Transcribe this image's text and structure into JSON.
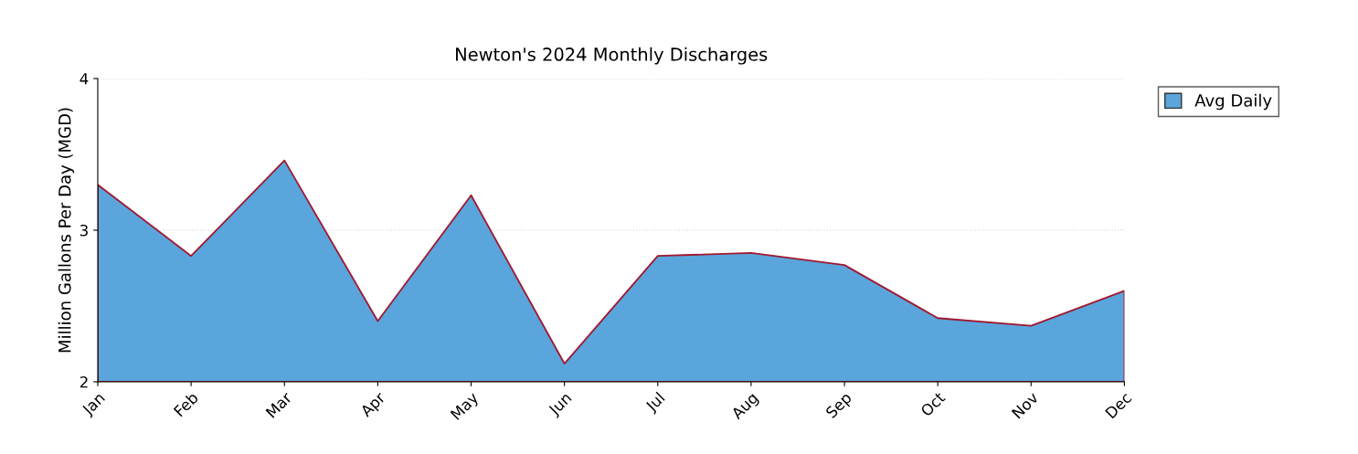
{
  "chart_data": {
    "type": "area",
    "title": "Newton's 2024 Monthly Discharges",
    "ylabel": "Million Gallons Per Day (MGD)",
    "categories": [
      "Jan",
      "Feb",
      "Mar",
      "Apr",
      "May",
      "Jun",
      "Jul",
      "Aug",
      "Sep",
      "Oct",
      "Nov",
      "Dec"
    ],
    "series": [
      {
        "name": "Avg Daily",
        "color": "#5aa5dc",
        "values": [
          3.3,
          2.83,
          3.46,
          2.4,
          3.23,
          2.12,
          2.83,
          2.85,
          2.77,
          2.42,
          2.37,
          2.6
        ]
      }
    ],
    "ylim": [
      2,
      4
    ],
    "yticks": [
      2,
      3,
      4
    ],
    "grid": "y",
    "legend": "top right"
  }
}
